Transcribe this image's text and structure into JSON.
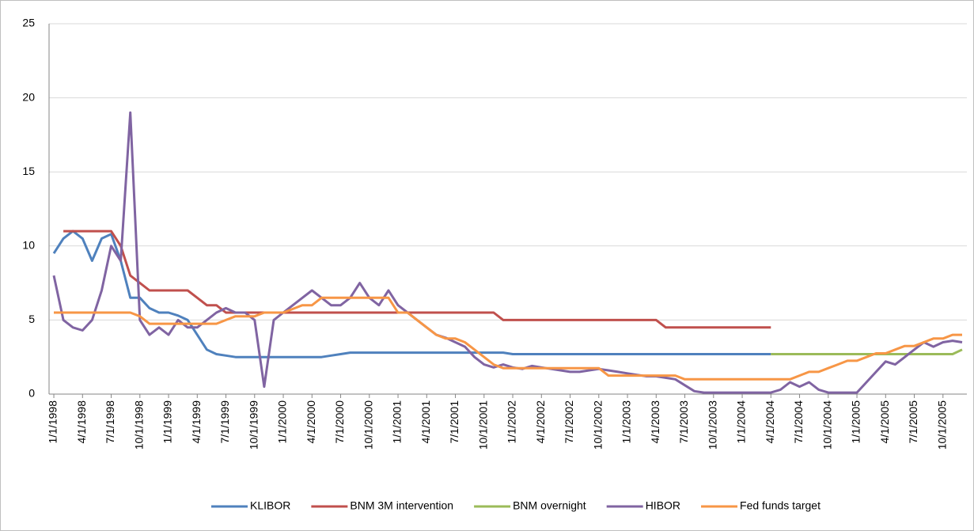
{
  "chart_data": {
    "type": "line",
    "categories": [
      "1/1/1998",
      null,
      null,
      "4/1/1998",
      null,
      null,
      "7/1/1998",
      null,
      null,
      "10/1/1998",
      null,
      null,
      "1/1/1999",
      null,
      null,
      "4/1/1999",
      null,
      null,
      "7/1/1999",
      null,
      null,
      "10/1/1999",
      null,
      null,
      "1/1/2000",
      null,
      null,
      "4/1/2000",
      null,
      null,
      "7/1/2000",
      null,
      null,
      "10/1/2000",
      null,
      null,
      "1/1/2001",
      null,
      null,
      "4/1/2001",
      null,
      null,
      "7/1/2001",
      null,
      null,
      "10/1/2001",
      null,
      null,
      "1/1/2002",
      null,
      null,
      "4/1/2002",
      null,
      null,
      "7/1/2002",
      null,
      null,
      "10/1/2002",
      null,
      null,
      "1/1/2003",
      null,
      null,
      "4/1/2003",
      null,
      null,
      "7/1/2003",
      null,
      null,
      "10/1/2003",
      null,
      null,
      "1/1/2004",
      null,
      null,
      "4/1/2004",
      null,
      null,
      "7/1/2004",
      null,
      null,
      "10/1/2004",
      null,
      null,
      "1/1/2005",
      null,
      null,
      "4/1/2005",
      null,
      null,
      "7/1/2005",
      null,
      null,
      "10/1/2005",
      null,
      null
    ],
    "series": [
      {
        "name": "KLIBOR",
        "color": "#4f81bd",
        "values": [
          9.5,
          10.5,
          11,
          10.5,
          9,
          10.5,
          10.8,
          9,
          6.5,
          6.5,
          5.8,
          5.5,
          5.5,
          5.3,
          5,
          4,
          3,
          2.7,
          2.6,
          2.5,
          2.5,
          2.5,
          2.5,
          2.5,
          2.5,
          2.5,
          2.5,
          2.5,
          2.5,
          2.6,
          2.7,
          2.8,
          2.8,
          2.8,
          2.8,
          2.8,
          2.8,
          2.8,
          2.8,
          2.8,
          2.8,
          2.8,
          2.8,
          2.8,
          2.8,
          2.8,
          2.8,
          2.8,
          2.7,
          2.7,
          2.7,
          2.7,
          2.7,
          2.7,
          2.7,
          2.7,
          2.7,
          2.7,
          2.7,
          2.7,
          2.7,
          2.7,
          2.7,
          2.7,
          2.7,
          2.7,
          2.7,
          2.7,
          2.7,
          2.7,
          2.7,
          2.7,
          2.7,
          2.7,
          2.7,
          2.7,
          null,
          null,
          null,
          null,
          null,
          null,
          null,
          null,
          null,
          null,
          null,
          null,
          null,
          null,
          null,
          null,
          null,
          null,
          null,
          null
        ]
      },
      {
        "name": "BNM 3M intervention",
        "color": "#c0504d",
        "values": [
          null,
          11,
          11,
          11,
          11,
          11,
          11,
          10,
          8,
          7.5,
          7,
          7,
          7,
          7,
          7,
          6.5,
          6,
          6,
          5.5,
          5.5,
          5.5,
          5.5,
          5.5,
          5.5,
          5.5,
          5.5,
          5.5,
          5.5,
          5.5,
          5.5,
          5.5,
          5.5,
          5.5,
          5.5,
          5.5,
          5.5,
          5.5,
          5.5,
          5.5,
          5.5,
          5.5,
          5.5,
          5.5,
          5.5,
          5.5,
          5.5,
          5.5,
          5,
          5,
          5,
          5,
          5,
          5,
          5,
          5,
          5,
          5,
          5,
          5,
          5,
          5,
          5,
          5,
          5,
          4.5,
          4.5,
          4.5,
          4.5,
          4.5,
          4.5,
          4.5,
          4.5,
          4.5,
          4.5,
          4.5,
          4.5,
          null,
          null,
          null,
          null,
          null,
          null,
          null,
          null,
          null,
          null,
          null,
          null,
          null,
          null,
          null,
          null,
          null,
          null,
          null,
          null
        ]
      },
      {
        "name": "BNM overnight",
        "color": "#9bbb59",
        "values": [
          null,
          null,
          null,
          null,
          null,
          null,
          null,
          null,
          null,
          null,
          null,
          null,
          null,
          null,
          null,
          null,
          null,
          null,
          null,
          null,
          null,
          null,
          null,
          null,
          null,
          null,
          null,
          null,
          null,
          null,
          null,
          null,
          null,
          null,
          null,
          null,
          null,
          null,
          null,
          null,
          null,
          null,
          null,
          null,
          null,
          null,
          null,
          null,
          null,
          null,
          null,
          null,
          null,
          null,
          null,
          null,
          null,
          null,
          null,
          null,
          null,
          null,
          null,
          null,
          null,
          null,
          null,
          null,
          null,
          null,
          null,
          null,
          null,
          null,
          null,
          2.7,
          2.7,
          2.7,
          2.7,
          2.7,
          2.7,
          2.7,
          2.7,
          2.7,
          2.7,
          2.7,
          2.7,
          2.7,
          2.7,
          2.7,
          2.7,
          2.7,
          2.7,
          2.7,
          2.7,
          3
        ]
      },
      {
        "name": "HIBOR",
        "color": "#8064a2",
        "values": [
          8,
          5,
          4.5,
          4.3,
          5,
          7,
          10,
          9,
          19,
          5,
          4,
          4.5,
          4,
          5,
          4.5,
          4.5,
          5,
          5.5,
          5.8,
          5.5,
          5.5,
          5,
          0.5,
          5,
          5.5,
          6,
          6.5,
          7,
          6.5,
          6,
          6,
          6.5,
          7.5,
          6.5,
          6,
          7,
          6,
          5.5,
          5,
          4.5,
          4,
          3.8,
          3.5,
          3.2,
          2.5,
          2,
          1.8,
          2,
          1.8,
          1.7,
          1.9,
          1.8,
          1.7,
          1.6,
          1.5,
          1.5,
          1.6,
          1.7,
          1.6,
          1.5,
          1.4,
          1.3,
          1.2,
          1.2,
          1.1,
          1,
          0.6,
          0.2,
          0.1,
          0.1,
          0.1,
          0.1,
          0.1,
          0.1,
          0.1,
          0.1,
          0.3,
          0.8,
          0.5,
          0.8,
          0.3,
          0.1,
          0.1,
          0.1,
          0.1,
          0.8,
          1.5,
          2.2,
          2,
          2.5,
          3,
          3.5,
          3.2,
          3.5,
          3.6,
          3.5
        ]
      },
      {
        "name": "Fed funds target",
        "color": "#f79646",
        "values": [
          5.5,
          5.5,
          5.5,
          5.5,
          5.5,
          5.5,
          5.5,
          5.5,
          5.5,
          5.25,
          4.75,
          4.75,
          4.75,
          4.75,
          4.75,
          4.75,
          4.75,
          4.75,
          5,
          5.25,
          5.25,
          5.25,
          5.5,
          5.5,
          5.5,
          5.75,
          6,
          6,
          6.5,
          6.5,
          6.5,
          6.5,
          6.5,
          6.5,
          6.5,
          6.5,
          5.5,
          5.5,
          5,
          4.5,
          4,
          3.75,
          3.75,
          3.5,
          3,
          2.5,
          2,
          1.75,
          1.75,
          1.75,
          1.75,
          1.75,
          1.75,
          1.75,
          1.75,
          1.75,
          1.75,
          1.75,
          1.25,
          1.25,
          1.25,
          1.25,
          1.25,
          1.25,
          1.25,
          1.25,
          1,
          1,
          1,
          1,
          1,
          1,
          1,
          1,
          1,
          1,
          1,
          1,
          1.25,
          1.5,
          1.5,
          1.75,
          2,
          2.25,
          2.25,
          2.5,
          2.75,
          2.75,
          3,
          3.25,
          3.25,
          3.5,
          3.75,
          3.75,
          4,
          4
        ]
      }
    ],
    "ylim": [
      0,
      25
    ],
    "yticks": [
      0,
      5,
      10,
      15,
      20,
      25
    ],
    "grid": true,
    "legend": "bottom"
  }
}
